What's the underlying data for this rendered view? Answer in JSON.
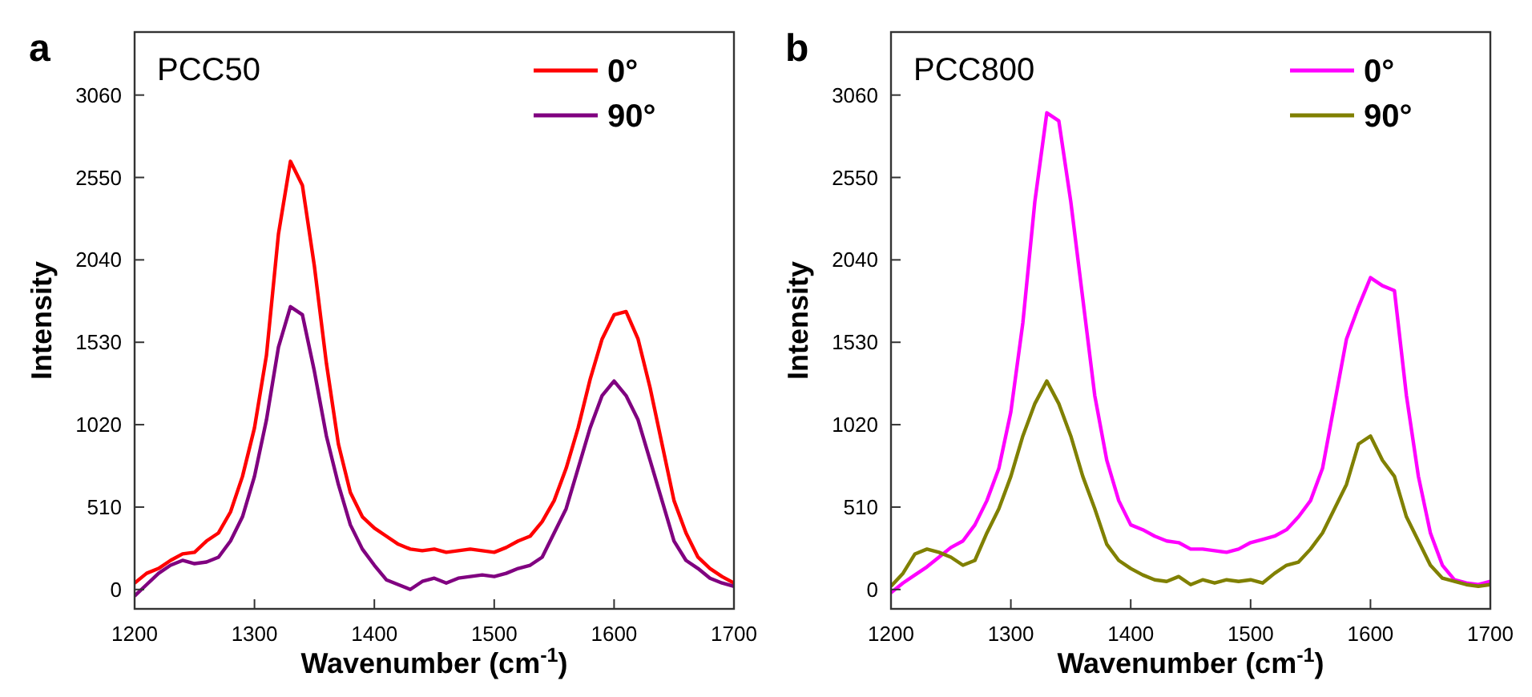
{
  "chart_data": [
    {
      "type": "line",
      "title": "a",
      "annotations": [
        "PCC50"
      ],
      "xlabel": "Wavenumber (cm$^{-1}$)",
      "ylabel": "Intensity",
      "x": [
        1200,
        1210,
        1220,
        1230,
        1240,
        1250,
        1260,
        1270,
        1280,
        1290,
        1300,
        1310,
        1320,
        1330,
        1340,
        1350,
        1360,
        1370,
        1380,
        1390,
        1400,
        1410,
        1420,
        1430,
        1440,
        1450,
        1460,
        1470,
        1480,
        1490,
        1500,
        1510,
        1520,
        1530,
        1540,
        1550,
        1560,
        1570,
        1580,
        1590,
        1600,
        1610,
        1620,
        1630,
        1640,
        1650,
        1660,
        1670,
        1680,
        1690,
        1700
      ],
      "xlim": [
        1200,
        1700
      ],
      "xticks": [
        1200,
        1300,
        1400,
        1500,
        1600,
        1700
      ],
      "ylim": [
        -120,
        3450
      ],
      "yticks": [
        0,
        510,
        1020,
        1530,
        2040,
        2550,
        3060
      ],
      "legend": "top right",
      "grid": false,
      "series": [
        {
          "name": "0°",
          "color": "#ff0000",
          "values": [
            40,
            100,
            130,
            180,
            220,
            230,
            300,
            350,
            480,
            700,
            1000,
            1450,
            2200,
            2650,
            2500,
            2000,
            1400,
            900,
            600,
            450,
            380,
            330,
            280,
            250,
            240,
            250,
            230,
            240,
            250,
            240,
            230,
            260,
            300,
            330,
            420,
            550,
            750,
            1000,
            1300,
            1550,
            1700,
            1720,
            1550,
            1250,
            900,
            550,
            350,
            200,
            130,
            80,
            40
          ]
        },
        {
          "name": "90°",
          "color": "#800080",
          "values": [
            -40,
            30,
            100,
            150,
            180,
            160,
            170,
            200,
            300,
            450,
            700,
            1050,
            1500,
            1750,
            1700,
            1350,
            950,
            650,
            400,
            250,
            150,
            60,
            30,
            0,
            50,
            70,
            40,
            70,
            80,
            90,
            80,
            100,
            130,
            150,
            200,
            350,
            500,
            750,
            1000,
            1200,
            1290,
            1200,
            1050,
            800,
            550,
            300,
            180,
            130,
            70,
            40,
            20
          ]
        }
      ]
    },
    {
      "type": "line",
      "title": "b",
      "annotations": [
        "PCC800"
      ],
      "xlabel": "Wavenumber (cm$^{-1}$)",
      "ylabel": "Intensity",
      "x": [
        1200,
        1210,
        1220,
        1230,
        1240,
        1250,
        1260,
        1270,
        1280,
        1290,
        1300,
        1310,
        1320,
        1330,
        1340,
        1350,
        1360,
        1370,
        1380,
        1390,
        1400,
        1410,
        1420,
        1430,
        1440,
        1450,
        1460,
        1470,
        1480,
        1490,
        1500,
        1510,
        1520,
        1530,
        1540,
        1550,
        1560,
        1570,
        1580,
        1590,
        1600,
        1610,
        1620,
        1630,
        1640,
        1650,
        1660,
        1670,
        1680,
        1690,
        1700
      ],
      "xlim": [
        1200,
        1700
      ],
      "xticks": [
        1200,
        1300,
        1400,
        1500,
        1600,
        1700
      ],
      "ylim": [
        -120,
        3450
      ],
      "yticks": [
        0,
        510,
        1020,
        1530,
        2040,
        2550,
        3060
      ],
      "legend": "top right",
      "grid": false,
      "series": [
        {
          "name": "0°",
          "color": "#ff00ff",
          "values": [
            -20,
            40,
            90,
            140,
            200,
            260,
            300,
            400,
            550,
            750,
            1100,
            1650,
            2400,
            2950,
            2900,
            2400,
            1800,
            1200,
            800,
            550,
            400,
            370,
            330,
            300,
            290,
            250,
            250,
            240,
            230,
            250,
            290,
            310,
            330,
            370,
            450,
            550,
            750,
            1150,
            1550,
            1750,
            1930,
            1880,
            1850,
            1200,
            700,
            350,
            150,
            60,
            40,
            30,
            50
          ]
        },
        {
          "name": "90°",
          "color": "#808000",
          "values": [
            20,
            100,
            220,
            250,
            230,
            200,
            150,
            180,
            350,
            500,
            700,
            950,
            1150,
            1290,
            1150,
            950,
            700,
            500,
            280,
            180,
            130,
            90,
            60,
            50,
            80,
            30,
            60,
            40,
            60,
            50,
            60,
            40,
            100,
            150,
            170,
            250,
            350,
            500,
            650,
            900,
            950,
            800,
            700,
            450,
            300,
            150,
            70,
            50,
            30,
            20,
            30
          ]
        }
      ]
    }
  ]
}
